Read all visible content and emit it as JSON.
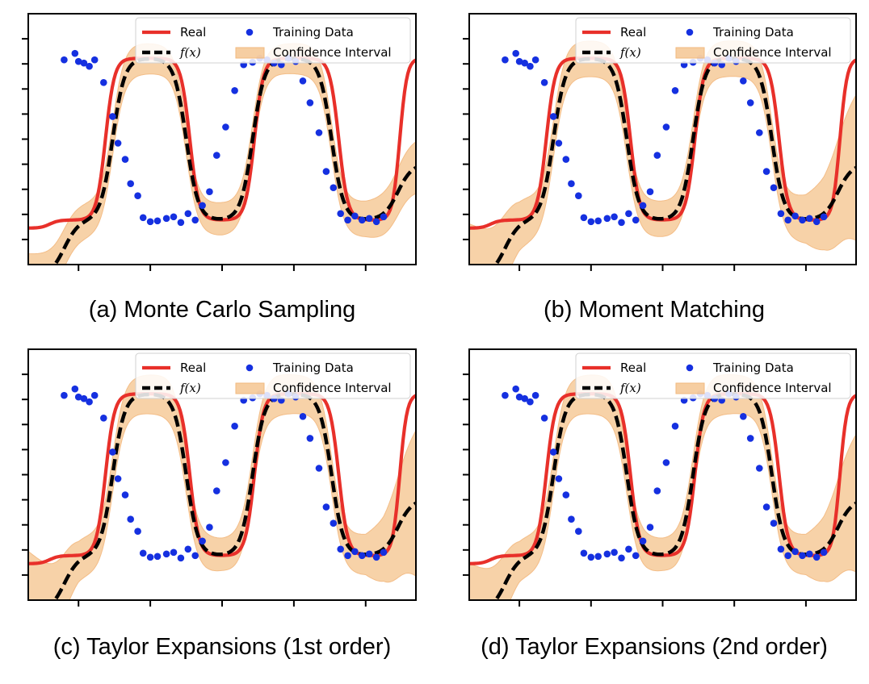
{
  "colors": {
    "real": "#e8302a",
    "fx": "#000000",
    "training": "#1530e0",
    "ci_fill": "#f5c38c",
    "ci_edge": "#f0a860"
  },
  "legend": {
    "real": "Real",
    "training": "Training Data",
    "fx": "f(x)",
    "ci": "Confidence Interval"
  },
  "captions": [
    "(a) Monte Carlo Sampling",
    "(b) Moment Matching",
    "(c) Taylor Expansions (1st order)",
    "(d) Taylor Expansions (2nd order)"
  ],
  "chart_data": [
    {
      "type": "line",
      "title": "(a) Monte Carlo Sampling",
      "xlim": [
        -5.4,
        5.4
      ],
      "ylim": [
        -1.55,
        1.55
      ],
      "grid": false,
      "legend_position": "top-right",
      "series": [
        {
          "name": "Real",
          "function": "tanh-step",
          "color": "#e8302a"
        },
        {
          "name": "f(x)",
          "style": "dashed",
          "color": "#000000"
        },
        {
          "name": "Training Data",
          "style": "points",
          "color": "#1530e0"
        },
        {
          "name": "Confidence Interval",
          "style": "band",
          "color": "#f5c38c"
        }
      ],
      "ci": {
        "x": [
          -5.4,
          -4.5,
          -4.0,
          -3.0,
          -1.5,
          0.0,
          1.5,
          3.0,
          4.0,
          4.5,
          5.4
        ],
        "halfwidth": [
          0.28,
          0.24,
          0.22,
          0.2,
          0.18,
          0.2,
          0.18,
          0.2,
          0.22,
          0.26,
          0.32
        ]
      }
    },
    {
      "type": "line",
      "title": "(b) Moment Matching",
      "xlim": [
        -5.4,
        5.4
      ],
      "ylim": [
        -1.55,
        1.55
      ],
      "grid": false,
      "legend_position": "top-right",
      "series": [
        {
          "name": "Real",
          "color": "#e8302a"
        },
        {
          "name": "f(x)",
          "style": "dashed",
          "color": "#000000"
        },
        {
          "name": "Training Data",
          "style": "points",
          "color": "#1530e0"
        },
        {
          "name": "Confidence Interval",
          "style": "band",
          "color": "#f5c38c"
        }
      ],
      "ci": {
        "x": [
          -5.4,
          -4.5,
          -4.0,
          -3.0,
          -1.5,
          0.0,
          1.5,
          3.0,
          4.0,
          4.5,
          5.4
        ],
        "halfwidth": [
          0.65,
          0.45,
          0.3,
          0.22,
          0.22,
          0.22,
          0.22,
          0.22,
          0.3,
          0.45,
          0.9
        ]
      }
    },
    {
      "type": "line",
      "title": "(c) Taylor Expansions (1st order)",
      "xlim": [
        -5.4,
        5.4
      ],
      "ylim": [
        -1.55,
        1.55
      ],
      "grid": false,
      "legend_position": "top-right",
      "series": [
        {
          "name": "Real",
          "color": "#e8302a"
        },
        {
          "name": "f(x)",
          "style": "dashed",
          "color": "#000000"
        },
        {
          "name": "Training Data",
          "style": "points",
          "color": "#1530e0"
        },
        {
          "name": "Confidence Interval",
          "style": "band",
          "color": "#f5c38c"
        }
      ],
      "ci": {
        "x": [
          -5.4,
          -4.5,
          -4.0,
          -3.0,
          -1.5,
          0.0,
          1.5,
          3.0,
          4.0,
          4.5,
          5.4
        ],
        "halfwidth": [
          0.75,
          0.4,
          0.25,
          0.22,
          0.25,
          0.2,
          0.25,
          0.22,
          0.25,
          0.4,
          0.9
        ]
      }
    },
    {
      "type": "line",
      "title": "(d) Taylor Expansions (2nd order)",
      "xlim": [
        -5.4,
        5.4
      ],
      "ylim": [
        -1.55,
        1.55
      ],
      "grid": false,
      "legend_position": "top-right",
      "series": [
        {
          "name": "Real",
          "color": "#e8302a"
        },
        {
          "name": "f(x)",
          "style": "dashed",
          "color": "#000000"
        },
        {
          "name": "Training Data",
          "style": "points",
          "color": "#1530e0"
        },
        {
          "name": "Confidence Interval",
          "style": "band",
          "color": "#f5c38c"
        }
      ],
      "ci": {
        "x": [
          -5.4,
          -4.5,
          -4.0,
          -3.0,
          -1.5,
          0.0,
          1.5,
          3.0,
          4.0,
          4.5,
          5.4
        ],
        "halfwidth": [
          0.6,
          0.4,
          0.25,
          0.22,
          0.25,
          0.2,
          0.25,
          0.22,
          0.25,
          0.4,
          0.85
        ]
      }
    }
  ],
  "training_points": {
    "x": [
      -4.4,
      -4.1,
      -4.0,
      -3.85,
      -3.7,
      -3.55,
      -3.3,
      -3.05,
      -2.9,
      -2.7,
      -2.55,
      -2.35,
      -2.2,
      -2.0,
      -1.8,
      -1.55,
      -1.35,
      -1.15,
      -0.95,
      -0.75,
      -0.55,
      -0.35,
      -0.15,
      0.1,
      0.35,
      0.6,
      0.85,
      1.05,
      1.25,
      1.45,
      1.65,
      1.85,
      2.05,
      2.25,
      2.45,
      2.7,
      2.9,
      3.1,
      3.3,
      3.5,
      3.7,
      3.9,
      4.1,
      4.3,
      4.5
    ],
    "y": [
      0.98,
      1.06,
      0.96,
      0.94,
      0.9,
      0.98,
      0.7,
      0.28,
      -0.05,
      -0.25,
      -0.55,
      -0.7,
      -0.97,
      -1.02,
      -1.01,
      -0.98,
      -0.96,
      -1.03,
      -0.92,
      -1.0,
      -0.82,
      -0.65,
      -0.2,
      0.15,
      0.6,
      0.92,
      0.95,
      1.0,
      0.98,
      0.94,
      0.92,
      1.0,
      0.96,
      0.72,
      0.45,
      0.08,
      -0.4,
      -0.6,
      -0.92,
      -1.0,
      -0.95,
      -1.0,
      -0.98,
      -1.02,
      -0.96
    ]
  }
}
